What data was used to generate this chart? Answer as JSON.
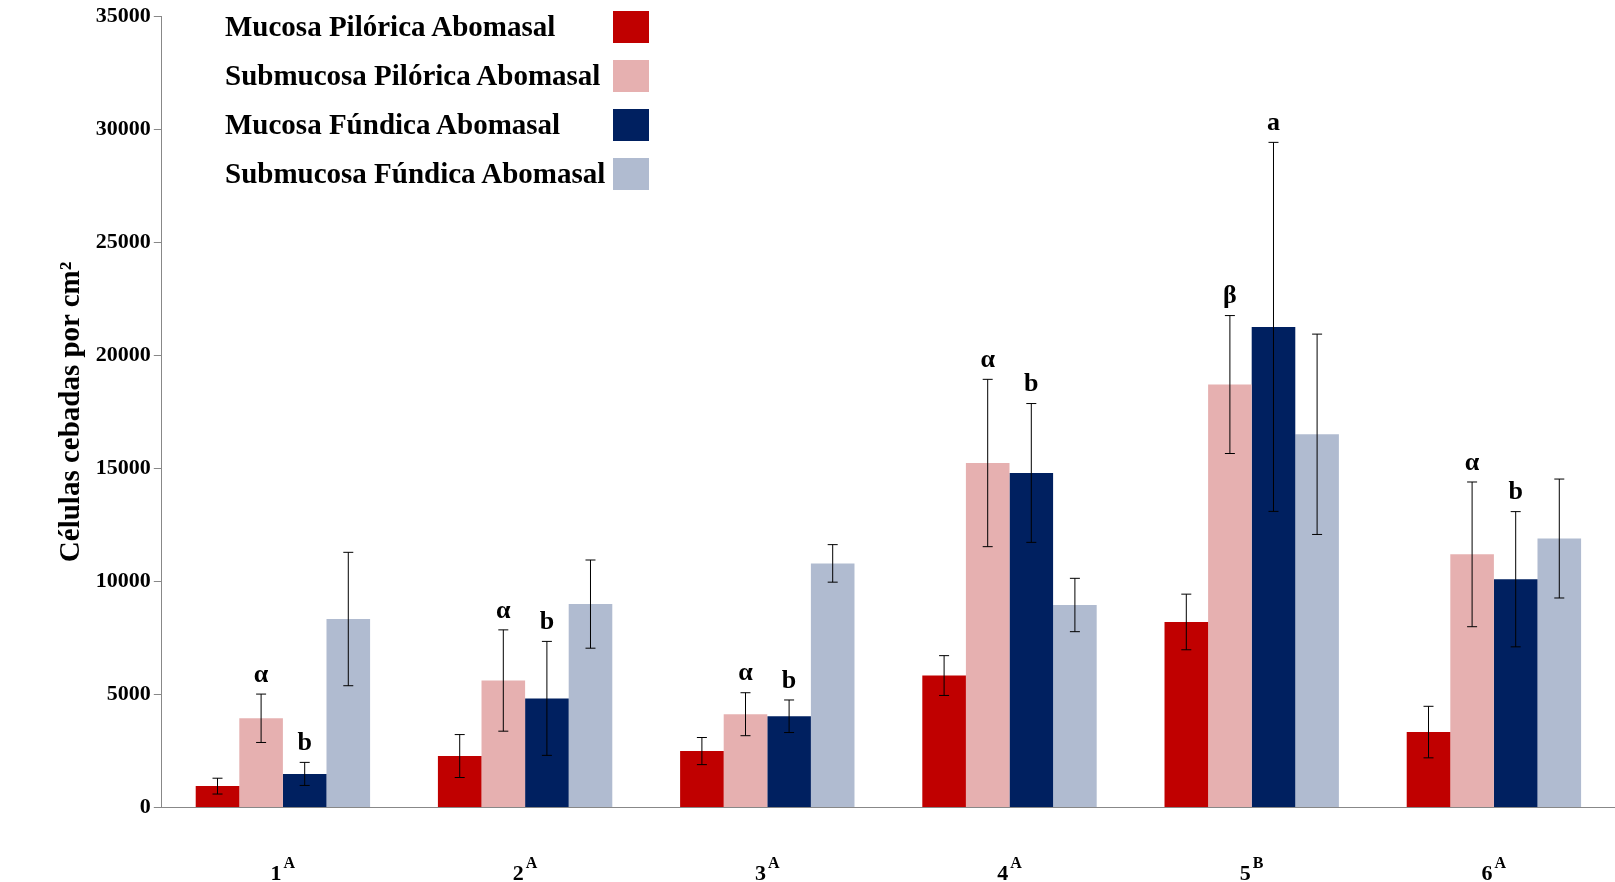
{
  "chart_data": {
    "type": "bar",
    "ylabel": "Células cebadas por cm²",
    "categories": [
      "1$^{A}$",
      "2$^{A}$",
      "3$^{A}$",
      "4$^{A}$",
      "5$^{B}$",
      "6$^{A}$"
    ],
    "series": [
      {
        "name": "Mucosa Pilórica Abomasal",
        "color": "#c00000",
        "values": [
          950,
          2280,
          2500,
          5840,
          8210,
          3340
        ],
        "errors": [
          350,
          950,
          600,
          880,
          1230,
          1140
        ]
      },
      {
        "name": "Submucosa Pilórica Abomasal",
        "color": "#e6b0b0",
        "values": [
          3950,
          5620,
          4130,
          15240,
          18710,
          11200
        ],
        "errors": [
          1070,
          2240,
          950,
          3700,
          3050,
          3200
        ]
      },
      {
        "name": "Mucosa Fúndica Abomasal",
        "color": "#002060",
        "values": [
          1490,
          4830,
          4040,
          14800,
          21260,
          10100
        ],
        "errors": [
          510,
          2520,
          720,
          3070,
          8160,
          2990
        ]
      },
      {
        "name": "Submucosa Fúndica Abomasal",
        "color": "#b0bbd0",
        "values": [
          8340,
          9000,
          10800,
          8960,
          16510,
          11900
        ],
        "errors": [
          2950,
          1950,
          830,
          1180,
          4430,
          2630
        ]
      }
    ],
    "ylim": [
      0,
      35000
    ],
    "yticks": [
      0,
      5000,
      10000,
      15000,
      20000,
      25000,
      30000,
      35000
    ],
    "grid": false,
    "legend": "top left",
    "annotations": [
      "α",
      "b",
      "α",
      "b",
      "α",
      "b",
      "α",
      "b",
      "β",
      "a",
      "α",
      "b"
    ]
  }
}
